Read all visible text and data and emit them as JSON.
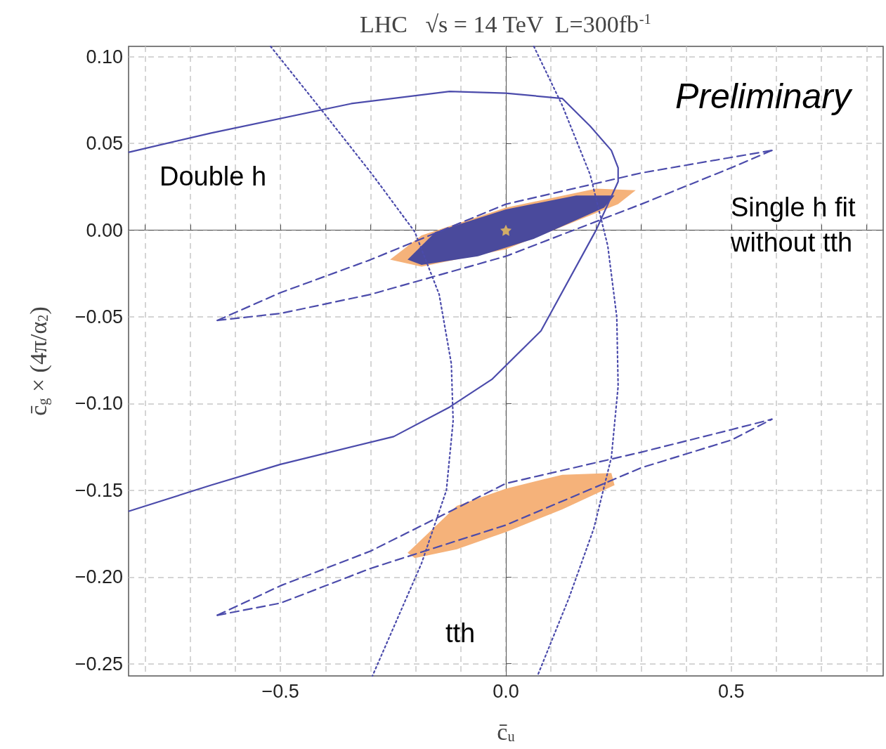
{
  "chart_data": {
    "type": "line",
    "title": "LHC   √s = 14 TeV  L=300fb$^{-1}$",
    "xlabel": "c̄$_{u}$",
    "ylabel": "c̄$_{g}$ × (4π/α$_{2}$)",
    "xlim": [
      -0.837,
      0.837
    ],
    "ylim": [
      -0.257,
      0.106
    ],
    "xticks": [
      {
        "value": -0.8,
        "label": null
      },
      {
        "value": -0.7,
        "label": null
      },
      {
        "value": -0.6,
        "label": null
      },
      {
        "value": -0.5,
        "label": "−0.5"
      },
      {
        "value": -0.4,
        "label": null
      },
      {
        "value": -0.3,
        "label": null
      },
      {
        "value": -0.2,
        "label": null
      },
      {
        "value": -0.1,
        "label": null
      },
      {
        "value": 0,
        "label": "0.0"
      },
      {
        "value": 0.1,
        "label": null
      },
      {
        "value": 0.2,
        "label": null
      },
      {
        "value": 0.3,
        "label": null
      },
      {
        "value": 0.4,
        "label": null
      },
      {
        "value": 0.5,
        "label": "0.5"
      },
      {
        "value": 0.6,
        "label": null
      },
      {
        "value": 0.7,
        "label": null
      },
      {
        "value": 0.8,
        "label": null
      }
    ],
    "yticks": [
      {
        "value": -0.25,
        "label": "−0.25"
      },
      {
        "value": -0.2,
        "label": "−0.20"
      },
      {
        "value": -0.15,
        "label": "−0.15"
      },
      {
        "value": -0.1,
        "label": "−0.10"
      },
      {
        "value": -0.05,
        "label": "−0.05"
      },
      {
        "value": 0,
        "label": "0.00"
      },
      {
        "value": 0.05,
        "label": "0.05"
      },
      {
        "value": 0.1,
        "label": "0.10"
      }
    ],
    "grid": true,
    "series": [
      {
        "type": "area",
        "color": "#f5b27a",
        "x": [
          -0.257,
          -0.187,
          0,
          0.2,
          0.288,
          0.249,
          0,
          -0.187
        ],
        "values": [
          -0.017,
          -0.003,
          0.013,
          0.024,
          0.023,
          0.015,
          -0.011,
          -0.021
        ]
      },
      {
        "type": "area",
        "color": "#f5b27a",
        "x": [
          -0.218,
          -0.109,
          0,
          0.125,
          0.234,
          0.241,
          0.125,
          0,
          -0.109,
          -0.202
        ],
        "values": [
          -0.186,
          -0.159,
          -0.149,
          -0.141,
          -0.14,
          -0.147,
          -0.161,
          -0.174,
          -0.184,
          -0.189
        ]
      },
      {
        "type": "area",
        "color": "#4a4a9c",
        "x": [
          -0.218,
          -0.156,
          0,
          0.156,
          0.241,
          0.218,
          0.062,
          -0.062,
          -0.187
        ],
        "values": [
          -0.017,
          -0.001,
          0.012,
          0.02,
          0.02,
          0.013,
          -0.005,
          -0.015,
          -0.02
        ]
      },
      {
        "color": "#4b4bab",
        "line_style": "solid",
        "x": [
          -0.836,
          -0.654,
          -0.343,
          -0.125,
          0.0,
          0.125,
          0.187,
          0.234,
          0.249,
          0.249,
          0.2,
          0.078,
          -0.031,
          -0.125,
          -0.249,
          -0.5,
          -0.654,
          -0.836
        ],
        "values": [
          0.045,
          0.056,
          0.073,
          0.08,
          0.079,
          0.076,
          0.06,
          0.046,
          0.036,
          0.028,
          0,
          -0.058,
          -0.086,
          -0.102,
          -0.119,
          -0.135,
          -0.147,
          -0.162
        ]
      },
      {
        "color": "#4b4bab",
        "line_style": "dotted",
        "x": [
          -0.522,
          -0.405,
          -0.296,
          -0.202,
          -0.148,
          -0.121,
          -0.117,
          -0.132,
          -0.187,
          -0.234,
          -0.296
        ],
        "values": [
          0.106,
          0.068,
          0.032,
          -0.001,
          -0.037,
          -0.077,
          -0.11,
          -0.15,
          -0.192,
          -0.22,
          -0.257
        ]
      },
      {
        "color": "#4b4bab",
        "line_style": "dotted",
        "x": [
          0.062,
          0.125,
          0.187,
          0.226,
          0.246,
          0.249,
          0.234,
          0.195,
          0.14,
          0.07
        ],
        "values": [
          0.106,
          0.072,
          0.032,
          -0.009,
          -0.05,
          -0.09,
          -0.131,
          -0.172,
          -0.212,
          -0.257
        ]
      },
      {
        "color": "#4b4bab",
        "line_style": "dashed",
        "x": [
          -0.64,
          -0.5,
          -0.3,
          0,
          0.3,
          0.5,
          0.59
        ],
        "values": [
          -0.052,
          -0.036,
          -0.017,
          0.015,
          0.033,
          0.042,
          0.046
        ]
      },
      {
        "color": "#4b4bab",
        "line_style": "dashed",
        "x": [
          -0.64,
          -0.5,
          -0.3,
          0,
          0.3,
          0.5,
          0.59
        ],
        "values": [
          -0.052,
          -0.048,
          -0.037,
          -0.015,
          0.015,
          0.036,
          0.046
        ]
      },
      {
        "color": "#4b4bab",
        "line_style": "dashed",
        "x": [
          -0.64,
          -0.5,
          -0.3,
          0,
          0.3,
          0.5,
          0.59
        ],
        "values": [
          -0.222,
          -0.205,
          -0.185,
          -0.146,
          -0.128,
          -0.115,
          -0.109
        ]
      },
      {
        "color": "#4b4bab",
        "line_style": "dashed",
        "x": [
          -0.64,
          -0.5,
          -0.3,
          0,
          0.3,
          0.5,
          0.59
        ],
        "values": [
          -0.222,
          -0.215,
          -0.195,
          -0.17,
          -0.137,
          -0.121,
          -0.109
        ]
      },
      {
        "type": "scatter",
        "color": "#f2c45a",
        "marker": "star",
        "x": [
          0
        ],
        "values": [
          0
        ]
      }
    ],
    "annotations": [
      "Preliminary",
      "Double h",
      "Single h fit without tth",
      "tth"
    ]
  }
}
